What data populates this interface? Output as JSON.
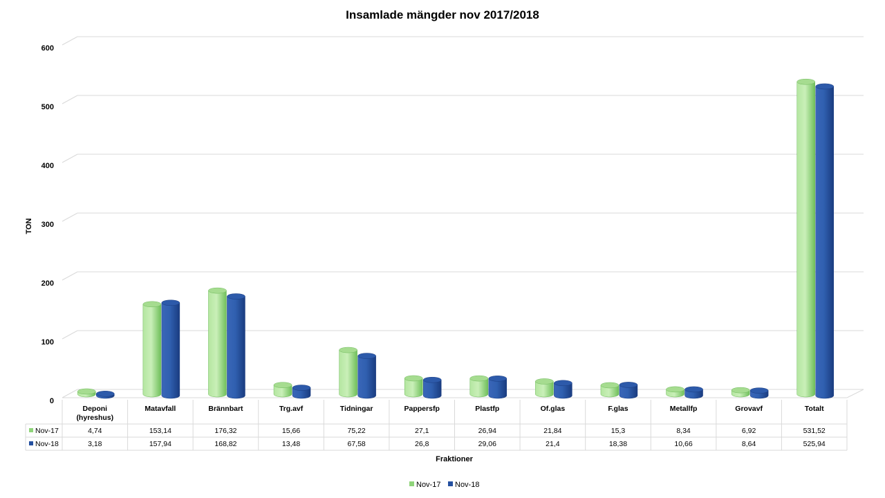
{
  "chart_data": {
    "type": "bar",
    "title": "Insamlade mängder nov 2017/2018",
    "ylabel": "TON",
    "xlabel": "Fraktioner",
    "ylim": [
      0,
      600
    ],
    "yticks": [
      "0",
      "100",
      "200",
      "300",
      "400",
      "500",
      "600"
    ],
    "categories": [
      "Deponi (hyreshus)",
      "Matavfall",
      "Brännbart",
      "Trg.avf",
      "Tidningar",
      "Pappersfp",
      "Plastfp",
      "Of.glas",
      "F.glas",
      "Metallfp",
      "Grovavf",
      "Totalt"
    ],
    "series": [
      {
        "name": "Nov-17",
        "color": "#8fd47a",
        "values": [
          4.74,
          153.14,
          176.32,
          15.66,
          75.22,
          27.1,
          26.94,
          21.84,
          15.3,
          8.34,
          6.92,
          531.52
        ],
        "labels": [
          "4,74",
          "153,14",
          "176,32",
          "15,66",
          "75,22",
          "27,1",
          "26,94",
          "21,84",
          "15,3",
          "8,34",
          "6,92",
          "531,52"
        ]
      },
      {
        "name": "Nov-18",
        "color": "#2450a0",
        "values": [
          3.18,
          157.94,
          168.82,
          13.48,
          67.58,
          26.8,
          29.06,
          21.4,
          18.38,
          10.66,
          8.64,
          525.94
        ],
        "labels": [
          "3,18",
          "157,94",
          "168,82",
          "13,48",
          "67,58",
          "26,8",
          "29,06",
          "21,4",
          "18,38",
          "10,66",
          "8,64",
          "525,94"
        ]
      }
    ],
    "grid": true,
    "legend": "bottom-center",
    "data_table": true
  }
}
